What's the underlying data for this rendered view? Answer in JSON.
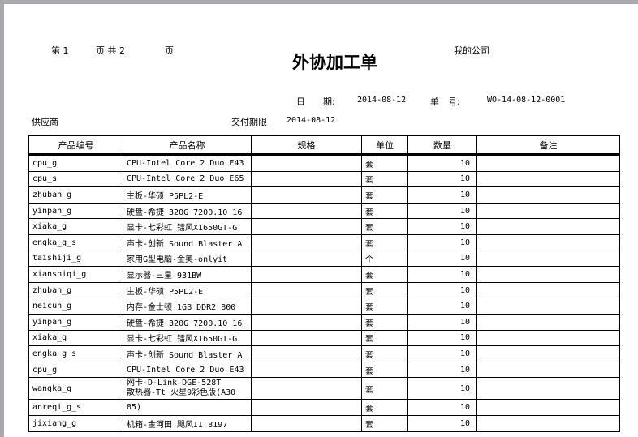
{
  "header": {
    "page_prefix": "第 1",
    "page_mid": "页 共 2",
    "page_suffix": "页",
    "title": "外协加工单",
    "company": "我的公司",
    "date_label": "日　　期:",
    "date_value": "2014-08-12",
    "order_no_label": "单　号:",
    "order_no_value": "WO-14-08-12-0001",
    "supplier_label": "供应商",
    "deadline_label": "交付期限",
    "deadline_value": "2014-08-12"
  },
  "table": {
    "columns": [
      "产品编号",
      "产品名称",
      "规格",
      "单位",
      "数量",
      "备注"
    ],
    "rows": [
      {
        "code": "cpu_g",
        "name": "CPU-Intel Core 2 Duo E43",
        "spec": "",
        "unit": "套",
        "qty": "10",
        "note": ""
      },
      {
        "code": "cpu_s",
        "name": "CPU-Intel Core 2 Duo E65",
        "spec": "",
        "unit": "套",
        "qty": "10",
        "note": ""
      },
      {
        "code": "zhuban_g",
        "name": "主板-华硕 P5PL2-E",
        "spec": "",
        "unit": "套",
        "qty": "10",
        "note": ""
      },
      {
        "code": "yinpan_g",
        "name": "硬盘-希捷 320G 7200.10 16",
        "spec": "",
        "unit": "套",
        "qty": "10",
        "note": ""
      },
      {
        "code": "xiaka_g",
        "name": "显卡-七彩虹 镭风X1650GT-G",
        "spec": "",
        "unit": "套",
        "qty": "10",
        "note": ""
      },
      {
        "code": "engka_g_s",
        "name": "声卡-创新 Sound Blaster A",
        "spec": "",
        "unit": "套",
        "qty": "10",
        "note": ""
      },
      {
        "code": "taishiji_g",
        "name": "家用G型电脑-金奥-onlyit",
        "spec": "",
        "unit": "个",
        "qty": "10",
        "note": ""
      },
      {
        "code": "xianshiqi_g",
        "name": "显示器-三星 931BW",
        "spec": "",
        "unit": "套",
        "qty": "10",
        "note": ""
      },
      {
        "code": "zhuban_g",
        "name": "主板-华硕 P5PL2-E",
        "spec": "",
        "unit": "套",
        "qty": "10",
        "note": ""
      },
      {
        "code": "neicun_g",
        "name": "内存-金士顿 1GB DDR2 800",
        "spec": "",
        "unit": "套",
        "qty": "10",
        "note": ""
      },
      {
        "code": "yinpan_g",
        "name": "硬盘-希捷 320G 7200.10 16",
        "spec": "",
        "unit": "套",
        "qty": "10",
        "note": ""
      },
      {
        "code": "xiaka_g",
        "name": "显卡-七彩虹 镭风X1650GT-G",
        "spec": "",
        "unit": "套",
        "qty": "10",
        "note": ""
      },
      {
        "code": "engka_g_s",
        "name": "声卡-创新 Sound Blaster A",
        "spec": "",
        "unit": "套",
        "qty": "10",
        "note": ""
      },
      {
        "code": "cpu_g",
        "name": "CPU-Intel Core 2 Duo E43",
        "spec": "",
        "unit": "套",
        "qty": "10",
        "note": ""
      },
      {
        "code": "wangka_g",
        "name": "网卡-D-Link DGE-528T",
        "name_overlap": "散热器-Tt 火星9彩色版(A30",
        "spec": "",
        "unit": "套",
        "qty": "10",
        "note": ""
      },
      {
        "code": "anreqi_g_s",
        "name": "85)",
        "spec": "",
        "unit": "套",
        "qty": "10",
        "note": ""
      },
      {
        "code": "jixiang_g",
        "name": "机箱-金河田 飓风II 8197",
        "spec": "",
        "unit": "套",
        "qty": "10",
        "note": ""
      }
    ]
  }
}
